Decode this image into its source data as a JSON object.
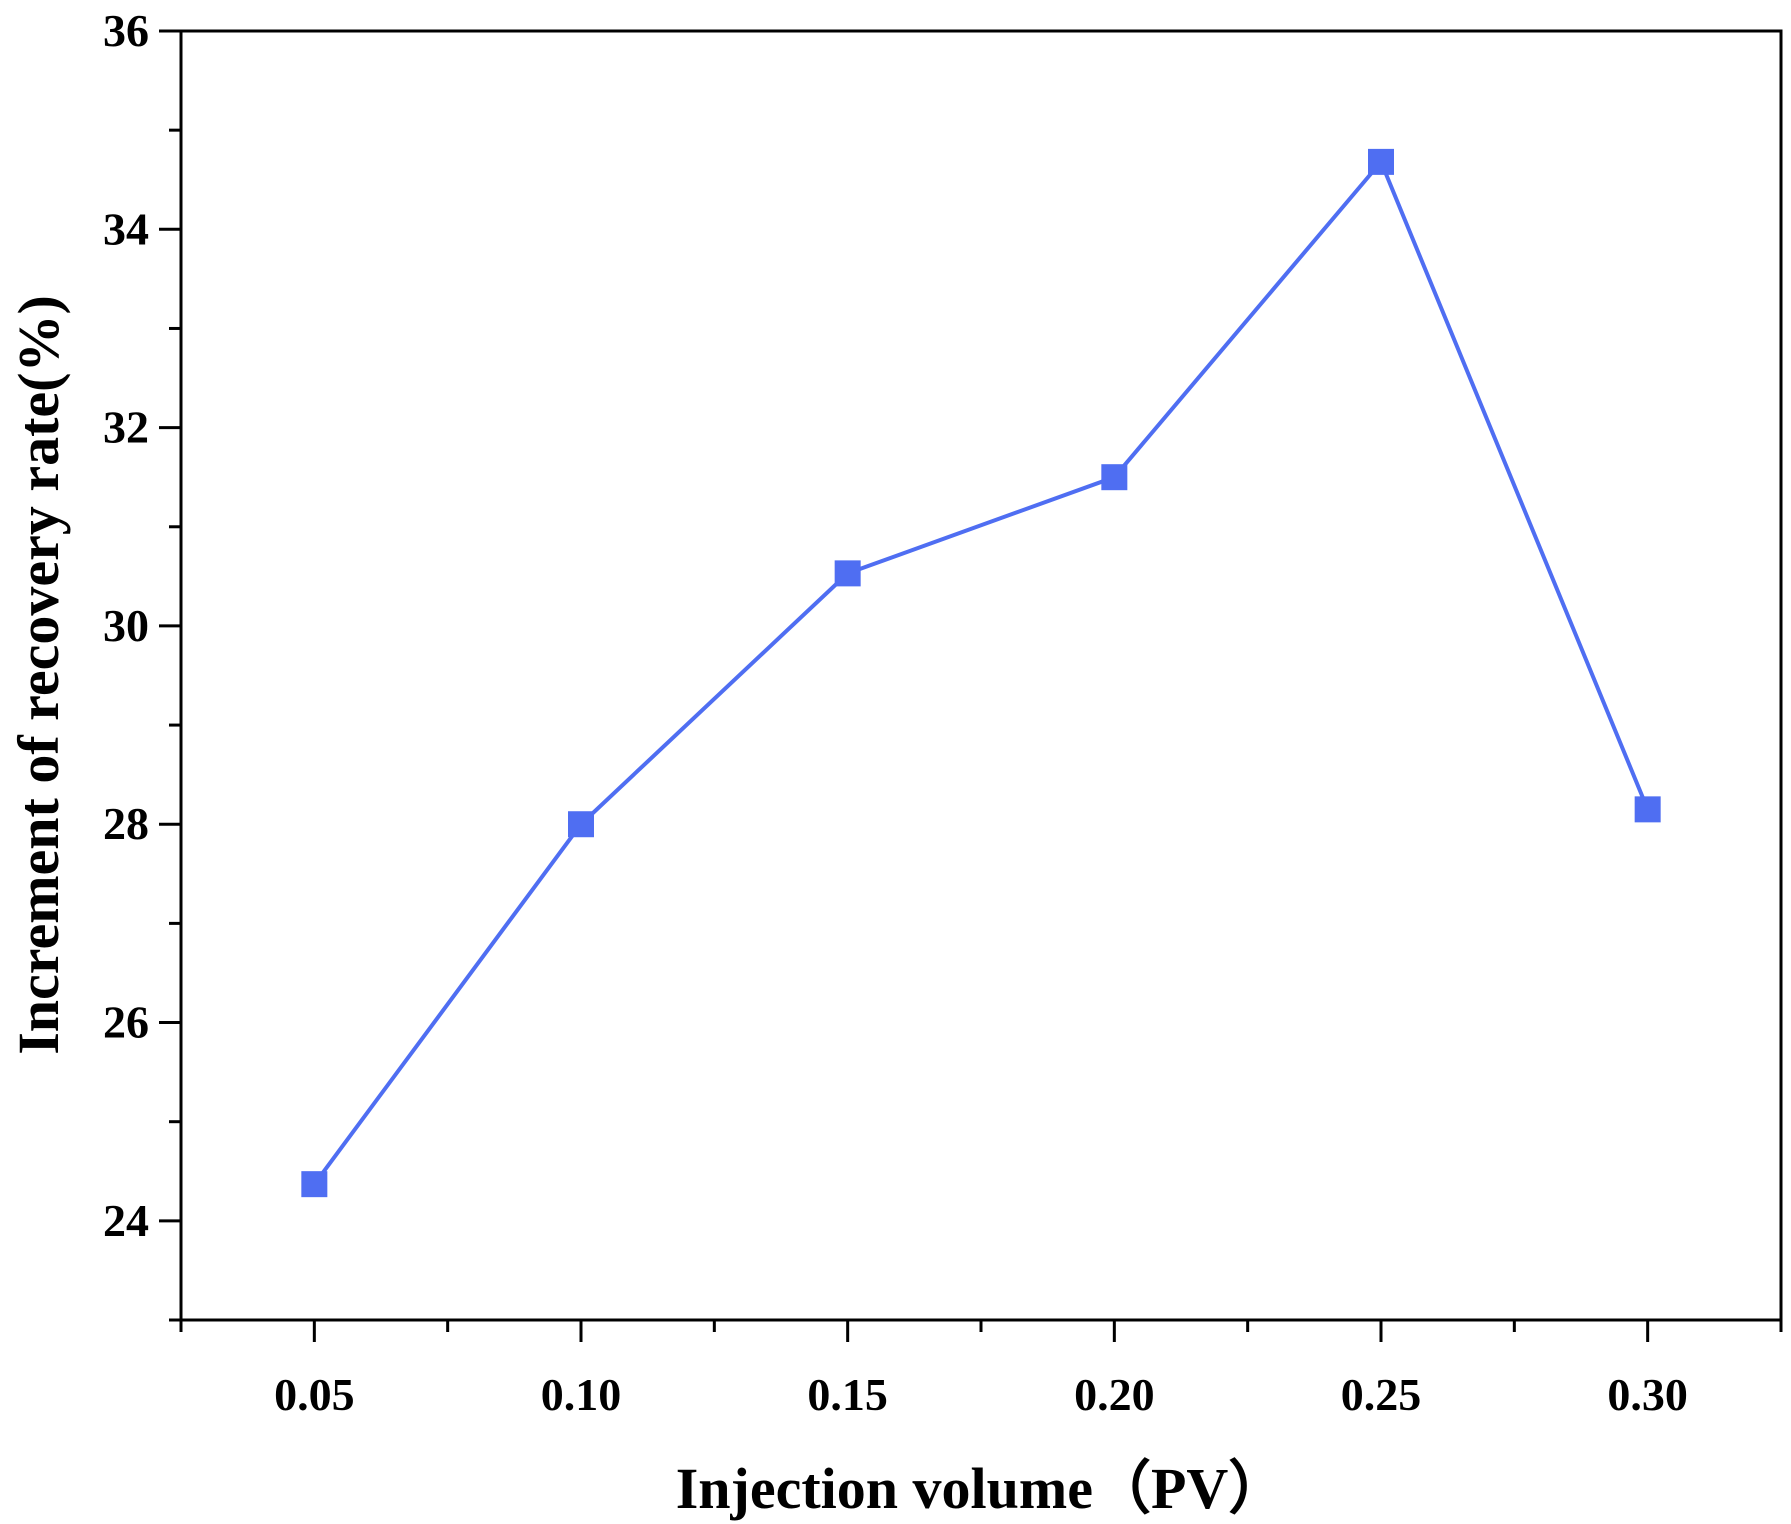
{
  "chart_data": {
    "type": "line",
    "title": "",
    "xlabel": "Injection volume（PV）",
    "ylabel": "Increment of recovery rate(%)",
    "xlim": [
      0.025,
      0.325
    ],
    "ylim": [
      23,
      36
    ],
    "x_ticks": [
      0.05,
      0.1,
      0.15,
      0.2,
      0.25,
      0.3
    ],
    "x_tick_labels": [
      "0.05",
      "0.10",
      "0.15",
      "0.20",
      "0.25",
      "0.30"
    ],
    "x_minor_ticks": [
      0.025,
      0.075,
      0.125,
      0.175,
      0.225,
      0.275,
      0.325
    ],
    "y_ticks": [
      24,
      26,
      28,
      30,
      32,
      34,
      36
    ],
    "y_tick_labels": [
      "24",
      "26",
      "28",
      "30",
      "32",
      "34",
      "36"
    ],
    "y_minor_ticks": [
      23,
      25,
      27,
      29,
      31,
      33,
      35
    ],
    "grid": false,
    "colors": {
      "series": "#4f6ef2",
      "axis": "#000000"
    },
    "series": [
      {
        "name": "Increment of recovery rate",
        "marker": "square",
        "x": [
          0.05,
          0.1,
          0.15,
          0.2,
          0.25,
          0.3
        ],
        "values": [
          24.37,
          28.0,
          30.53,
          31.5,
          34.68,
          28.15
        ]
      }
    ]
  }
}
